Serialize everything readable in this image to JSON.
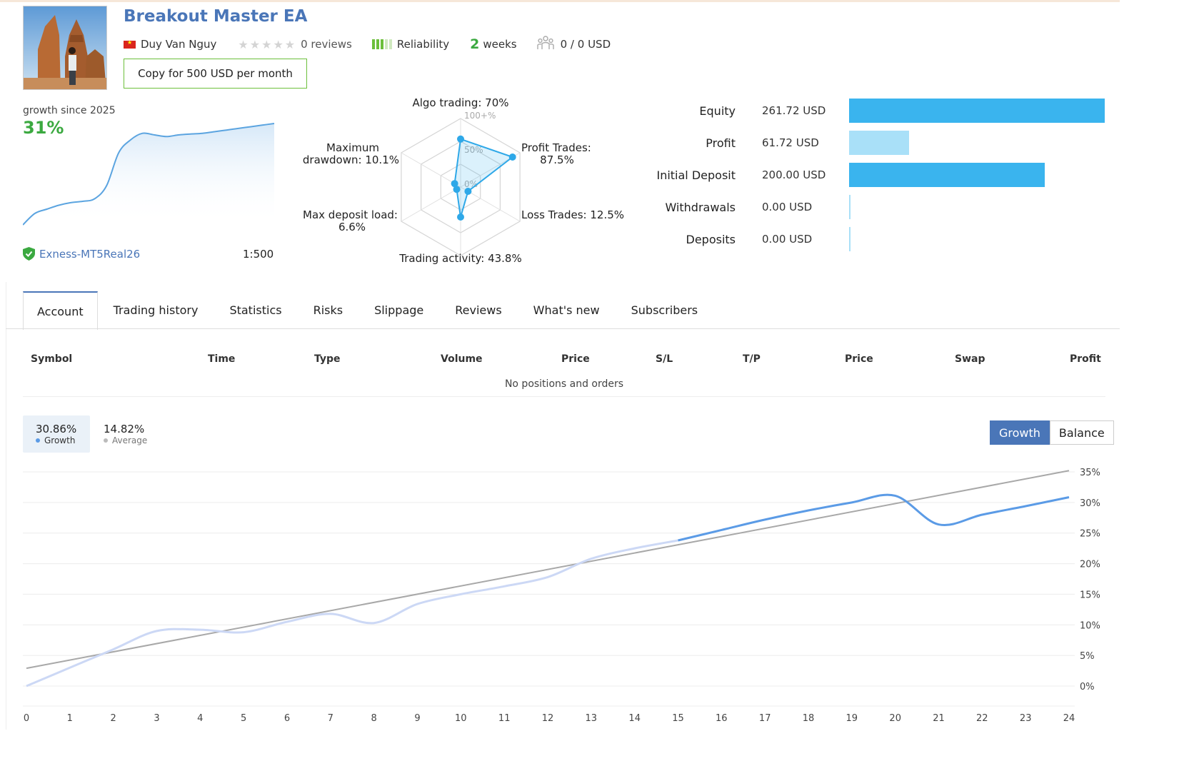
{
  "header": {
    "title": "Breakout Master EA",
    "author": "Duy Van Nguy",
    "reviews": "0 reviews",
    "reliability": "Reliability",
    "weeks_num": "2",
    "weeks_label": "weeks",
    "subscribers": "0 / 0 USD",
    "copy_button": "Copy for 500 USD per month"
  },
  "growth_summary": {
    "label": "growth since 2025",
    "value": "31%",
    "broker": "Exness-MT5Real26",
    "leverage": "1:500"
  },
  "radar": {
    "algo": "Algo trading: 70%",
    "profit_trades_1": "Profit Trades:",
    "profit_trades_2": "87.5%",
    "loss_trades": "Loss Trades: 12.5%",
    "activity": "Trading activity: 43.8%",
    "deposit_load_1": "Max deposit load:",
    "deposit_load_2": "6.6%",
    "drawdown_1": "Maximum",
    "drawdown_2": "drawdown: 10.1%",
    "tick_100": "100+%",
    "tick_50": "50%",
    "tick_0": "0%"
  },
  "account": {
    "rows": [
      {
        "label": "Equity",
        "value": "261.72 USD",
        "amount": 261.72,
        "color": "#3ab4ee"
      },
      {
        "label": "Profit",
        "value": "61.72 USD",
        "amount": 61.72,
        "color": "#a9e0f8"
      },
      {
        "label": "Initial Deposit",
        "value": "200.00 USD",
        "amount": 200.0,
        "color": "#3ab4ee"
      },
      {
        "label": "Withdrawals",
        "value": "0.00 USD",
        "amount": 0,
        "color": "#a9e0f8"
      },
      {
        "label": "Deposits",
        "value": "0.00 USD",
        "amount": 0,
        "color": "#a9e0f8"
      }
    ]
  },
  "tabs": [
    "Account",
    "Trading history",
    "Statistics",
    "Risks",
    "Slippage",
    "Reviews",
    "What's new",
    "Subscribers"
  ],
  "positions_table": {
    "headers": [
      "Symbol",
      "Time",
      "Type",
      "Volume",
      "Price",
      "S/L",
      "T/P",
      "Price",
      "Swap",
      "Profit"
    ],
    "empty_text": "No positions and orders"
  },
  "growth_chart_stats": {
    "growth_value": "30.86%",
    "growth_label": "Growth",
    "average_value": "14.82%",
    "average_label": "Average",
    "growth_color": "#5b9be6",
    "average_color": "#bbbbbb"
  },
  "chart_toggle": {
    "growth": "Growth",
    "balance": "Balance"
  },
  "chart_data": [
    {
      "type": "area",
      "title": "",
      "x": [
        0,
        1,
        2,
        3,
        4,
        5,
        6,
        7,
        8,
        9,
        10,
        11,
        12,
        13,
        14,
        15,
        16,
        17,
        18,
        19,
        20,
        21
      ],
      "series": [
        {
          "values": [
            0,
            3.5,
            4.8,
            6,
            6.8,
            7.2,
            8,
            12,
            22,
            26,
            28,
            27.5,
            27,
            27.5,
            27.8,
            28,
            28.5,
            29,
            29.5,
            30,
            30.5,
            31
          ]
        }
      ]
    },
    {
      "type": "radar",
      "categories": [
        "Algo trading",
        "Profit Trades",
        "Loss Trades",
        "Trading activity",
        "Max deposit load",
        "Maximum drawdown"
      ],
      "values": [
        70,
        87.5,
        12.5,
        43.8,
        6.6,
        10.1
      ]
    },
    {
      "type": "line",
      "x": [
        0,
        1,
        2,
        3,
        4,
        5,
        6,
        7,
        8,
        9,
        10,
        11,
        12,
        13,
        14,
        15,
        16,
        17,
        18,
        19,
        20,
        21,
        22,
        23,
        24
      ],
      "ylim": [
        -2,
        37
      ],
      "yticks": [
        "0%",
        "5%",
        "10%",
        "15%",
        "20%",
        "25%",
        "30%",
        "35%"
      ],
      "series": [
        {
          "name": "Growth",
          "values": [
            0,
            3,
            6,
            9,
            9.2,
            8.8,
            10.5,
            11.8,
            10.3,
            13.4,
            15,
            16.3,
            17.8,
            20.8,
            22.5,
            23.8,
            25.5,
            27.2,
            28.7,
            30,
            31.1,
            26.4,
            28,
            29.4,
            30.86
          ]
        },
        {
          "name": "Average",
          "values": [
            2.9,
            4.2,
            5.6,
            6.9,
            8.3,
            9.6,
            11,
            12.3,
            13.7,
            15,
            16.4,
            17.7,
            19.1,
            20.4,
            21.8,
            23.1,
            24.4,
            25.8,
            27.1,
            28.5,
            29.8,
            31.2,
            32.5,
            33.9,
            35.2
          ]
        }
      ]
    }
  ]
}
